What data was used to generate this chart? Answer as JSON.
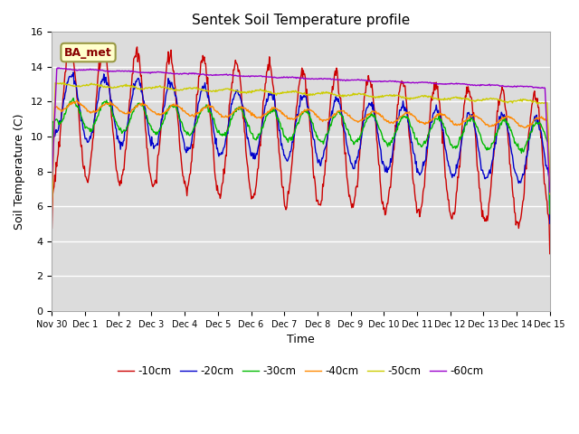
{
  "title": "Sentek Soil Temperature profile",
  "xlabel": "Time",
  "ylabel": "Soil Temperature (C)",
  "ylim": [
    0,
    16
  ],
  "yticks": [
    0,
    2,
    4,
    6,
    8,
    10,
    12,
    14,
    16
  ],
  "annotation": "BA_met",
  "plot_bg_color": "#dcdcdc",
  "series_colors": {
    "-10cm": "#cc0000",
    "-20cm": "#0000cc",
    "-30cm": "#00bb00",
    "-40cm": "#ff8800",
    "-50cm": "#cccc00",
    "-60cm": "#9900cc"
  },
  "xtick_labels": [
    "Nov 30",
    "Dec 1",
    "Dec 2",
    "Dec 3",
    "Dec 4",
    "Dec 5",
    "Dec 6",
    "Dec 7",
    "Dec 8",
    "Dec 9",
    "Dec 10",
    "Dec 11",
    "Dec 12",
    "Dec 13",
    "Dec 14",
    "Dec 15"
  ],
  "num_points": 720
}
